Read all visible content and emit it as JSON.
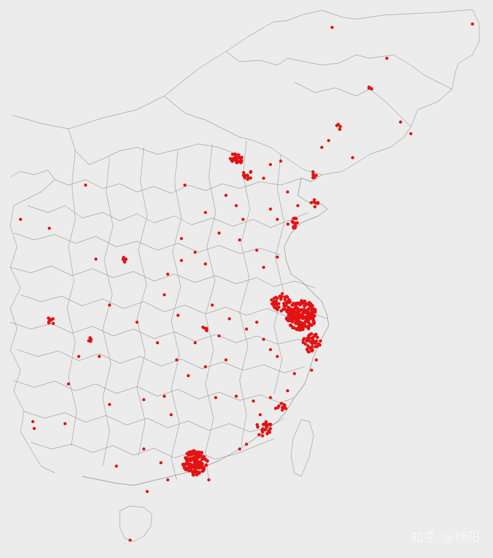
{
  "map": {
    "background_color": "#ececec",
    "boundary_color": "#9a9a9a",
    "marker_color": "#e31313",
    "marker_name": "location-dot"
  },
  "watermark": {
    "text": "知乎 @杨阳"
  }
}
